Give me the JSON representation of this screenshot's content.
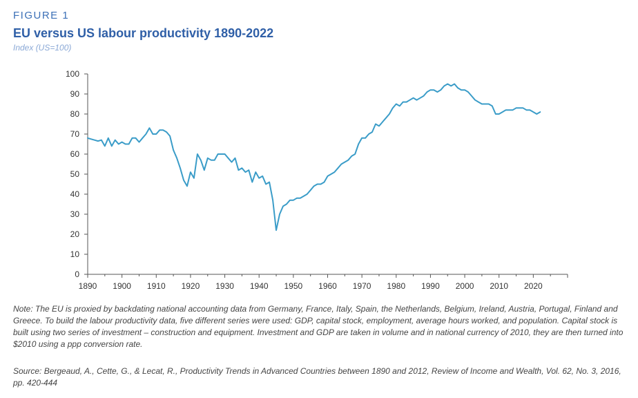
{
  "figure_label": "FIGURE 1",
  "note": "Note: The EU is proxied by backdating national accounting data from Germany, France, Italy, Spain, the Netherlands, Belgium, Ireland, Austria, Portugal, Finland and Greece. To build the labour productivity data, five different series were used: GDP, capital stock, employment, average hours worked, and population. Capital stock is built using two series of investment – construction and equipment. Investment and GDP are taken in volume and in national currency of 2010, they are then turned into $2010 using a ppp conversion rate.",
  "source": "Source: Bergeaud, A., Cette, G., & Lecat, R., Productivity Trends in Advanced Countries between 1890 and 2012, Review of Income and Wealth, Vol. 62, No. 3, 2016, pp. 420-444",
  "colors": {
    "line": "#3a9cc8",
    "title": "#2f5fa7",
    "axis": "#555555"
  },
  "chart_data": {
    "type": "line",
    "title": "EU versus US labour productivity 1890-2022",
    "subtitle": "Index (US=100)",
    "xlabel": "",
    "ylabel": "",
    "xlim": [
      1890,
      2030
    ],
    "ylim": [
      0,
      100
    ],
    "x_ticks": [
      1890,
      1900,
      1910,
      1920,
      1930,
      1940,
      1950,
      1960,
      1970,
      1980,
      1990,
      2000,
      2010,
      2020
    ],
    "y_ticks": [
      0,
      10,
      20,
      30,
      40,
      50,
      60,
      70,
      80,
      90,
      100
    ],
    "grid": false,
    "legend": "none",
    "series": [
      {
        "x": [
          1890,
          1891,
          1892,
          1893,
          1894,
          1895,
          1896,
          1897,
          1898,
          1899,
          1900,
          1901,
          1902,
          1903,
          1904,
          1905,
          1906,
          1907,
          1908,
          1909,
          1910,
          1911,
          1912,
          1913,
          1914,
          1915,
          1916,
          1917,
          1918,
          1919,
          1920,
          1921,
          1922,
          1923,
          1924,
          1925,
          1926,
          1927,
          1928,
          1929,
          1930,
          1931,
          1932,
          1933,
          1934,
          1935,
          1936,
          1937,
          1938,
          1939,
          1940,
          1941,
          1942,
          1943,
          1944,
          1945,
          1946,
          1947,
          1948,
          1949,
          1950,
          1951,
          1952,
          1953,
          1954,
          1955,
          1956,
          1957,
          1958,
          1959,
          1960,
          1961,
          1962,
          1963,
          1964,
          1965,
          1966,
          1967,
          1968,
          1969,
          1970,
          1971,
          1972,
          1973,
          1974,
          1975,
          1976,
          1977,
          1978,
          1979,
          1980,
          1981,
          1982,
          1983,
          1984,
          1985,
          1986,
          1987,
          1988,
          1989,
          1990,
          1991,
          1992,
          1993,
          1994,
          1995,
          1996,
          1997,
          1998,
          1999,
          2000,
          2001,
          2002,
          2003,
          2004,
          2005,
          2006,
          2007,
          2008,
          2009,
          2010,
          2011,
          2012,
          2013,
          2014,
          2015,
          2016,
          2017,
          2018,
          2019,
          2020,
          2021,
          2022
        ],
        "values": [
          68,
          67.5,
          67,
          66.5,
          67,
          64,
          68,
          64,
          67,
          65,
          66,
          65,
          65,
          68,
          68,
          66,
          68,
          70,
          73,
          70,
          70,
          72,
          72,
          71,
          69,
          62,
          58,
          53,
          47,
          44,
          51,
          48,
          60,
          57,
          52,
          58,
          57,
          57,
          60,
          60,
          60,
          58,
          56,
          58,
          52,
          53,
          51,
          52,
          46,
          51,
          48,
          49,
          45,
          46,
          37,
          22,
          30,
          34,
          35,
          37,
          37,
          38,
          38,
          39,
          40,
          42,
          44,
          45,
          45,
          46,
          49,
          50,
          51,
          53,
          55,
          56,
          57,
          59,
          60,
          65,
          68,
          68,
          70,
          71,
          75,
          74,
          76,
          78,
          80,
          83,
          85,
          84,
          86,
          86,
          87,
          88,
          87,
          88,
          89,
          91,
          92,
          92,
          91,
          92,
          94,
          95,
          94,
          95,
          93,
          92,
          92,
          91,
          89,
          87,
          86,
          85,
          85,
          85,
          84,
          80,
          80,
          81,
          82,
          82,
          82,
          83,
          83,
          83,
          82,
          82,
          81,
          80,
          81
        ]
      }
    ]
  }
}
